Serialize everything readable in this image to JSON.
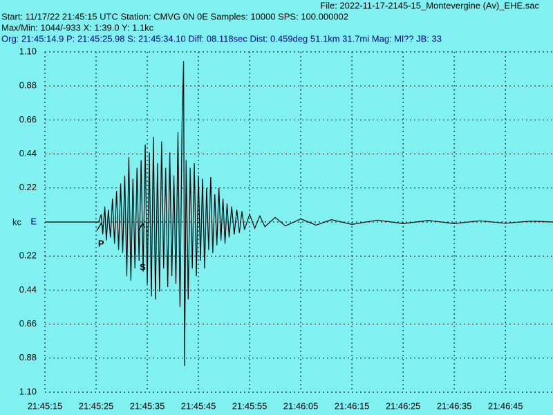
{
  "chart_data": {
    "type": "line",
    "title": "File: 2022-11-17-2145-15_Montevergine (Av)_EHE.sac",
    "info_lines": [
      "Start: 11/17/22 21:45:15 UTC Station: CMVG 0N 0E Samples: 10000  SPS: 100.000002",
      "Max/Min: 1044/-933 X: 1:39.0 Y: 1.1kc",
      "Org: 21:45:14.9 P: 21:45:25.98 S: 21:45:34.10 Diff: 08.118sec Dist: 0.459deg 51.1km 31.7mi  Mag: Ml?? JB: 33"
    ],
    "y_label": "kc",
    "color": "#000000",
    "background": "#80f0f0",
    "grid": true,
    "xlim": [
      78315,
      78414.3
    ],
    "xticks": [
      {
        "value": 78315,
        "label": "21:45:15"
      },
      {
        "value": 78325,
        "label": "21:45:25"
      },
      {
        "value": 78335,
        "label": "21:45:35"
      },
      {
        "value": 78345,
        "label": "21:45:45"
      },
      {
        "value": 78355,
        "label": "21:45:55"
      },
      {
        "value": 78365,
        "label": "21:46:05"
      },
      {
        "value": 78375,
        "label": "21:46:15"
      },
      {
        "value": 78385,
        "label": "21:46:25"
      },
      {
        "value": 78395,
        "label": "21:46:35"
      },
      {
        "value": 78405,
        "label": "21:46:45"
      }
    ],
    "ylim": [
      -1.1,
      1.1
    ],
    "yticks": [
      {
        "value": 1.1,
        "label": "1.10"
      },
      0.88,
      0.66,
      0.44,
      0.22,
      {
        "value": 0,
        "label": "E"
      },
      {
        "value": -0.22,
        "label": "0.22"
      },
      {
        "value": -0.44,
        "label": "0.44"
      },
      {
        "value": -0.66,
        "label": "0.66"
      },
      {
        "value": -0.88,
        "label": "0.88"
      },
      {
        "value": -1.1,
        "label": "1.10"
      }
    ],
    "annotations": [
      {
        "text": "P",
        "x": 78325.98
      },
      {
        "text": "S",
        "x": 78334.1
      }
    ],
    "x": [
      78315,
      78325.5,
      78326,
      78326.3,
      78326.7,
      78327,
      78327.4,
      78327.8,
      78328.2,
      78328.6,
      78329,
      78329.4,
      78329.8,
      78330.2,
      78330.6,
      78331,
      78331.4,
      78331.8,
      78332.2,
      78332.6,
      78333,
      78333.4,
      78333.8,
      78334.2,
      78334.6,
      78335,
      78335.4,
      78335.8,
      78336.2,
      78336.6,
      78337,
      78337.4,
      78337.8,
      78338.2,
      78338.6,
      78339,
      78339.4,
      78339.8,
      78340.2,
      78340.6,
      78341,
      78341.4,
      78341.8,
      78342.1,
      78342.3,
      78342.6,
      78343,
      78343.4,
      78343.8,
      78344.2,
      78344.6,
      78345,
      78345.4,
      78345.8,
      78346.2,
      78346.6,
      78347,
      78347.4,
      78347.8,
      78348.2,
      78348.6,
      78349,
      78349.4,
      78349.8,
      78350.2,
      78350.6,
      78351,
      78351.5,
      78352,
      78352.5,
      78353,
      78353.5,
      78354,
      78355,
      78356,
      78357,
      78358,
      78360,
      78362,
      78365,
      78368,
      78371,
      78375,
      78380,
      78385,
      78390,
      78395,
      78400,
      78405,
      78410,
      78414.3
    ],
    "values": [
      0,
      0,
      0.05,
      -0.08,
      0.1,
      -0.12,
      0.08,
      -0.1,
      0.15,
      -0.14,
      0.2,
      -0.18,
      0.25,
      -0.2,
      0.3,
      -0.35,
      0.42,
      -0.38,
      0.28,
      -0.3,
      0.35,
      -0.25,
      0.4,
      -0.32,
      0.5,
      -0.4,
      0.45,
      -0.48,
      0.55,
      -0.5,
      0.38,
      -0.45,
      0.52,
      -0.3,
      0.35,
      -0.42,
      0.45,
      -0.35,
      0.3,
      -0.4,
      0.58,
      -0.55,
      0.64,
      1.04,
      -0.93,
      0.4,
      -0.5,
      0.35,
      -0.3,
      0.38,
      -0.35,
      0.3,
      -0.25,
      0.28,
      -0.3,
      0.22,
      -0.18,
      0.29,
      -0.2,
      0.18,
      -0.15,
      0.22,
      -0.12,
      0.15,
      -0.14,
      0.12,
      -0.1,
      0.1,
      -0.08,
      0.08,
      -0.07,
      0.07,
      -0.05,
      0.05,
      -0.04,
      0.04,
      -0.03,
      0.03,
      -0.025,
      0.02,
      -0.02,
      0.015,
      -0.015,
      0.012,
      -0.01,
      0.01,
      -0.01,
      0.008,
      -0.008,
      0.006,
      0
    ]
  }
}
